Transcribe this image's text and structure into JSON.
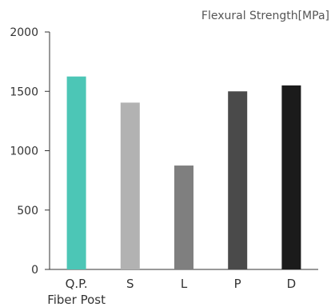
{
  "chart_data": {
    "type": "bar",
    "title": "",
    "ylabel": "Flexural Strength[MPa]",
    "xlabel": "",
    "ylim": [
      0,
      2000
    ],
    "yticks": [
      0,
      500,
      1000,
      1500,
      2000
    ],
    "categories": [
      "Q.P.\nFiber Post",
      "S",
      "L",
      "P",
      "D"
    ],
    "category_lines": [
      [
        "Q.P.",
        "Fiber Post"
      ],
      [
        "S"
      ],
      [
        "L"
      ],
      [
        "P"
      ],
      [
        "D"
      ]
    ],
    "values": [
      1625,
      1405,
      875,
      1500,
      1550
    ],
    "colors": [
      "#4cc6b6",
      "#b2b2b2",
      "#7f7f7f",
      "#4a4a4a",
      "#1b1b1b"
    ],
    "highlight_label_color": "#4cc6b6",
    "grid": false
  }
}
